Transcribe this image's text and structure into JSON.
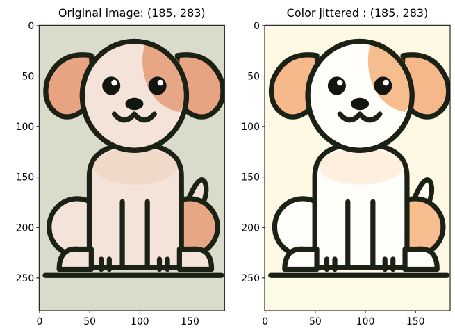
{
  "chart_data": [
    {
      "type": "image",
      "title": "Original image: (185, 283)",
      "xlim": [
        -0.5,
        184.5
      ],
      "ylim": [
        282.5,
        -0.5
      ],
      "xticks": [
        0,
        50,
        100,
        150
      ],
      "yticks": [
        0,
        50,
        100,
        150,
        200,
        250
      ]
    },
    {
      "type": "image",
      "title": "Color jittered : (185, 283)",
      "xlim": [
        -0.5,
        184.5
      ],
      "ylim": [
        282.5,
        -0.5
      ],
      "xticks": [
        0,
        50,
        100,
        150
      ],
      "yticks": [
        0,
        50,
        100,
        150,
        200,
        250
      ]
    }
  ]
}
